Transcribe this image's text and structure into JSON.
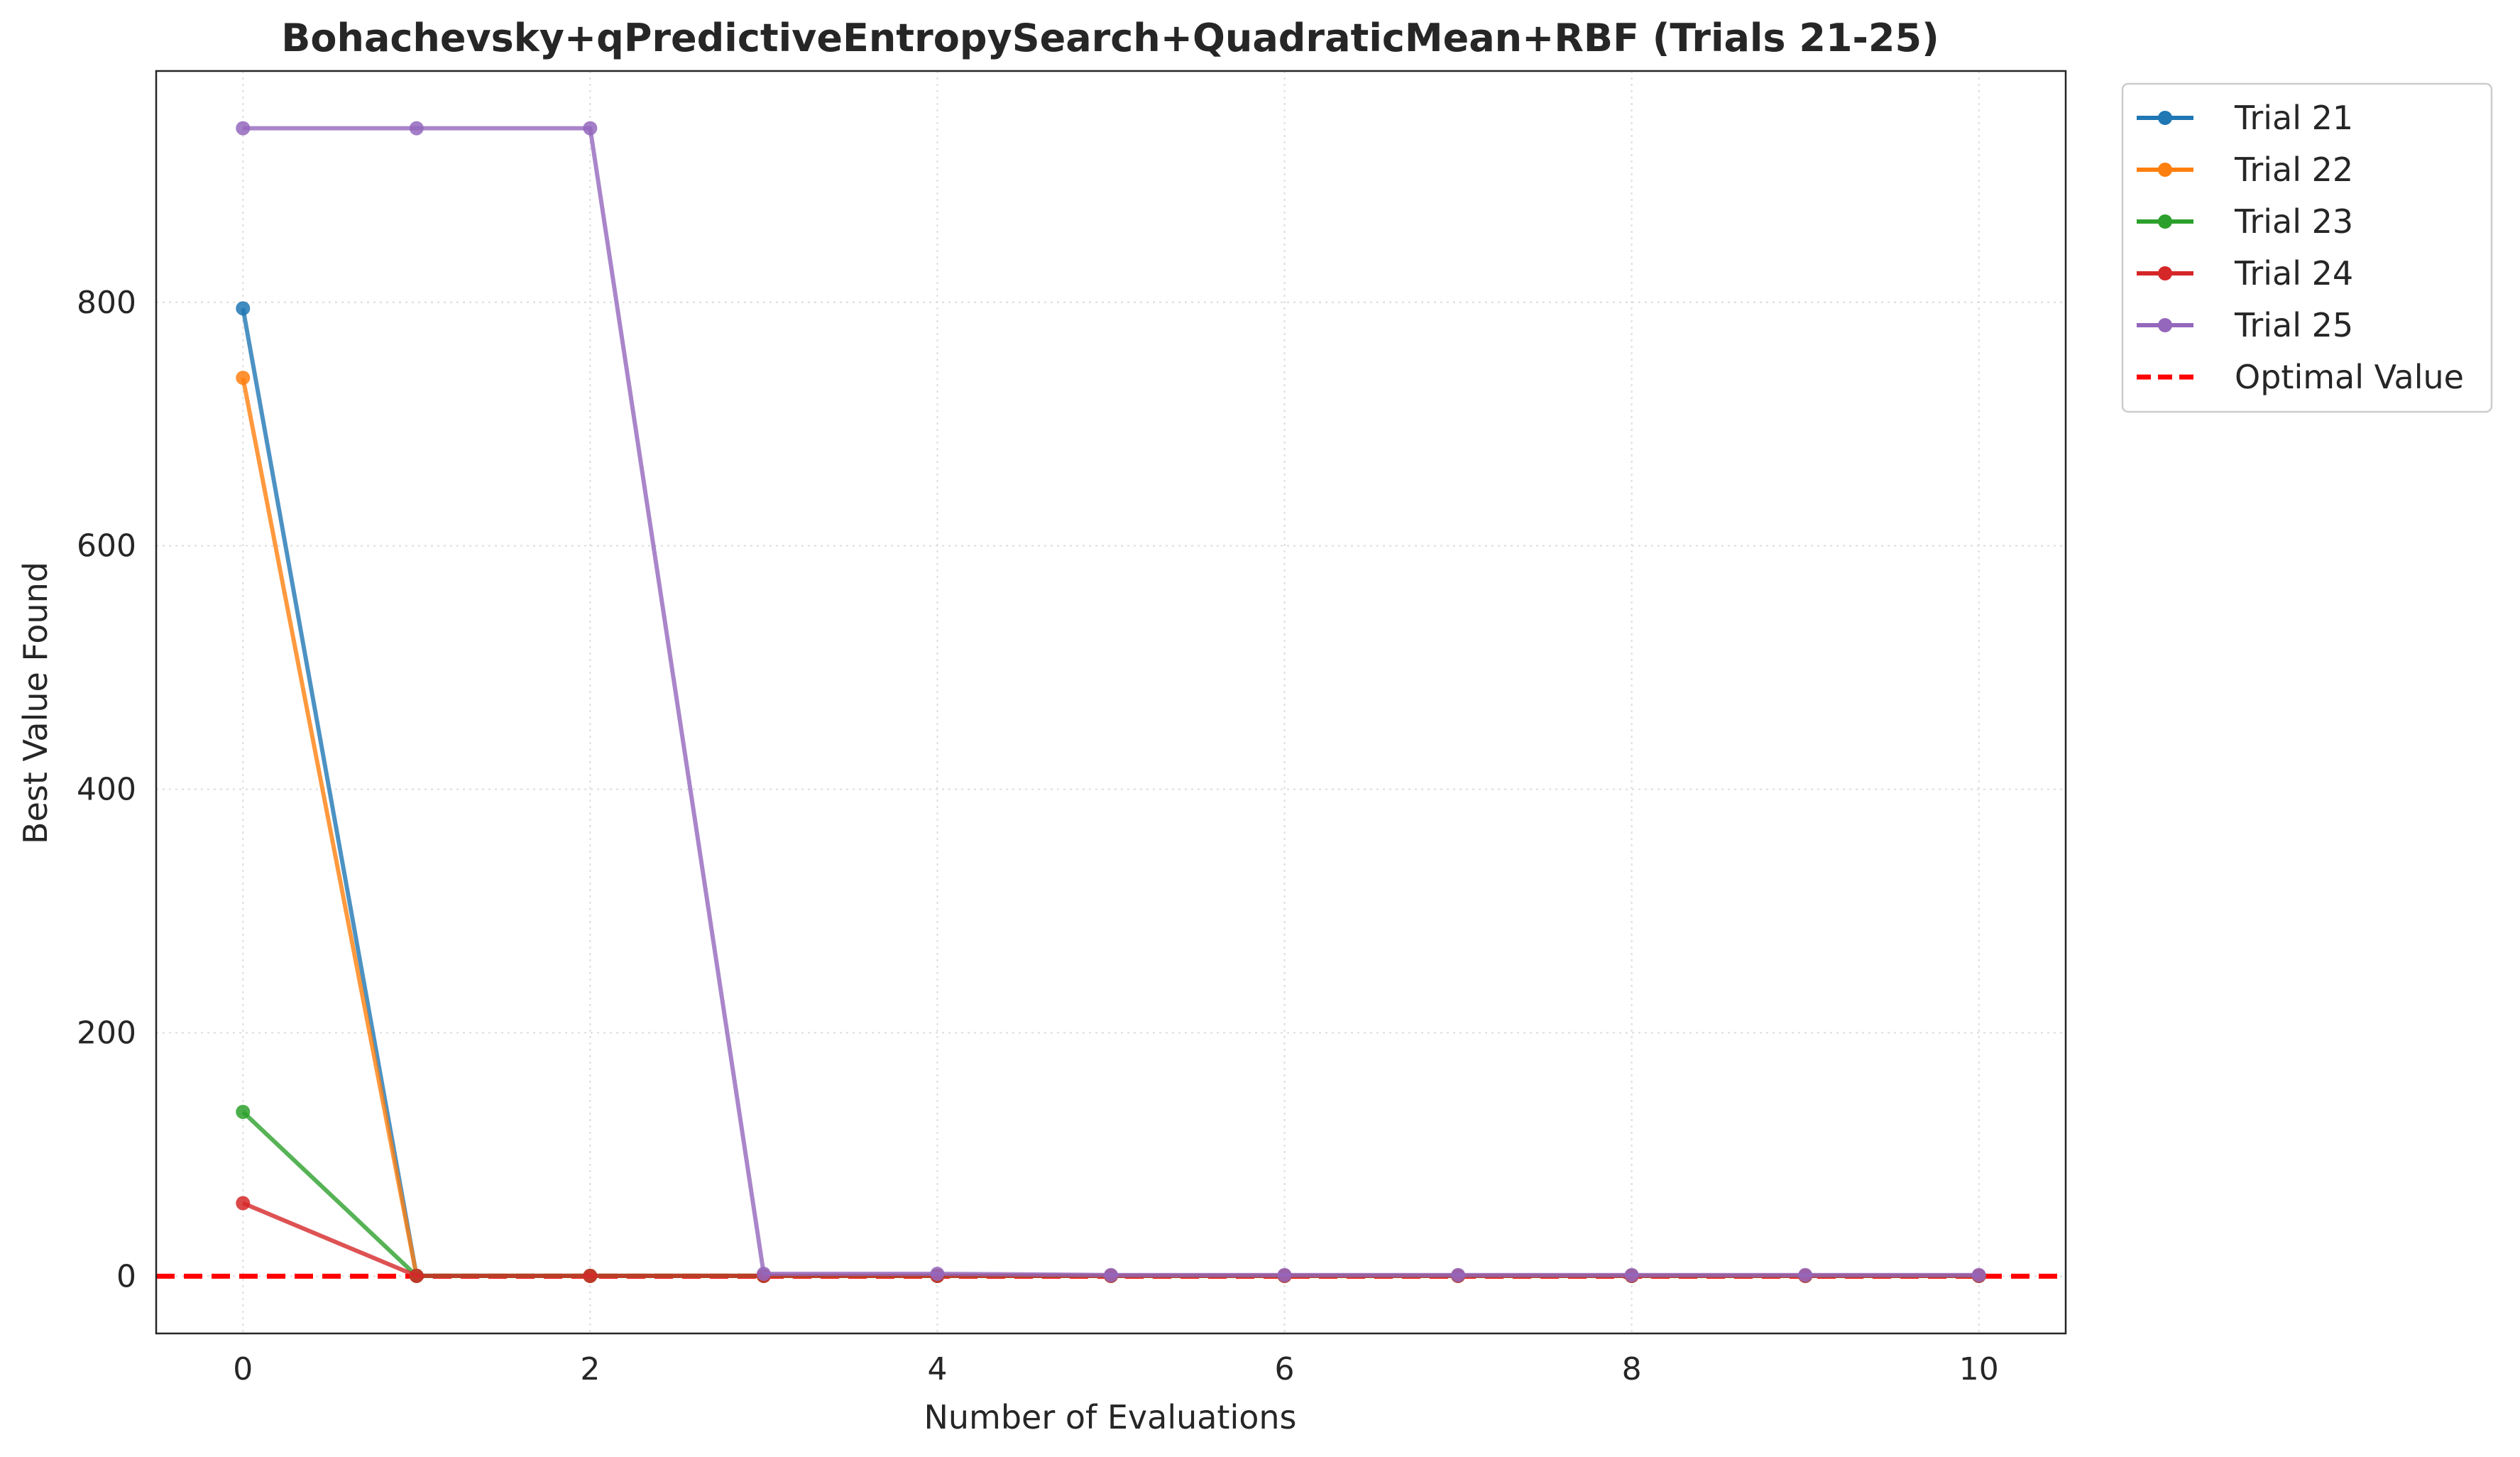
{
  "chart_data": {
    "type": "line",
    "title": "Bohachevsky+qPredictiveEntropySearch+QuadraticMean+RBF (Trials 21-25)",
    "xlabel": "Number of Evaluations",
    "ylabel": "Best Value Found",
    "xlim": [
      -0.5,
      10.5
    ],
    "ylim": [
      -47,
      990
    ],
    "xticks": [
      0,
      2,
      4,
      6,
      8,
      10
    ],
    "yticks": [
      0,
      200,
      400,
      600,
      800
    ],
    "grid": true,
    "legend_position": "outside-top-right",
    "x": [
      0,
      1,
      2,
      3,
      4,
      5,
      6,
      7,
      8,
      9,
      10
    ],
    "series": [
      {
        "name": "Trial 21",
        "color": "#1f77b4",
        "values": [
          795,
          0.3,
          0.3,
          0.3,
          0.3,
          0.3,
          0.3,
          0.3,
          0.3,
          0.3,
          0.3
        ]
      },
      {
        "name": "Trial 22",
        "color": "#ff7f0e",
        "values": [
          738,
          0.3,
          0.3,
          0.3,
          0.3,
          0.3,
          0.3,
          0.3,
          0.3,
          0.3,
          0.3
        ]
      },
      {
        "name": "Trial 23",
        "color": "#2ca02c",
        "values": [
          135,
          0.3,
          0.3,
          0.3,
          0.3,
          0.3,
          0.3,
          0.3,
          0.3,
          0.3,
          0.3
        ]
      },
      {
        "name": "Trial 24",
        "color": "#d62728",
        "values": [
          60,
          0.3,
          0.3,
          0.3,
          0.3,
          0.3,
          0.3,
          0.3,
          0.3,
          0.3,
          0.3
        ]
      },
      {
        "name": "Trial 25",
        "color": "#9467bd",
        "values": [
          943,
          943,
          943,
          2,
          2,
          1,
          1,
          1,
          1,
          1,
          1
        ]
      }
    ],
    "reference_line": {
      "name": "Optimal Value",
      "value": 0,
      "color": "#ff0000",
      "style": "dashed"
    }
  }
}
